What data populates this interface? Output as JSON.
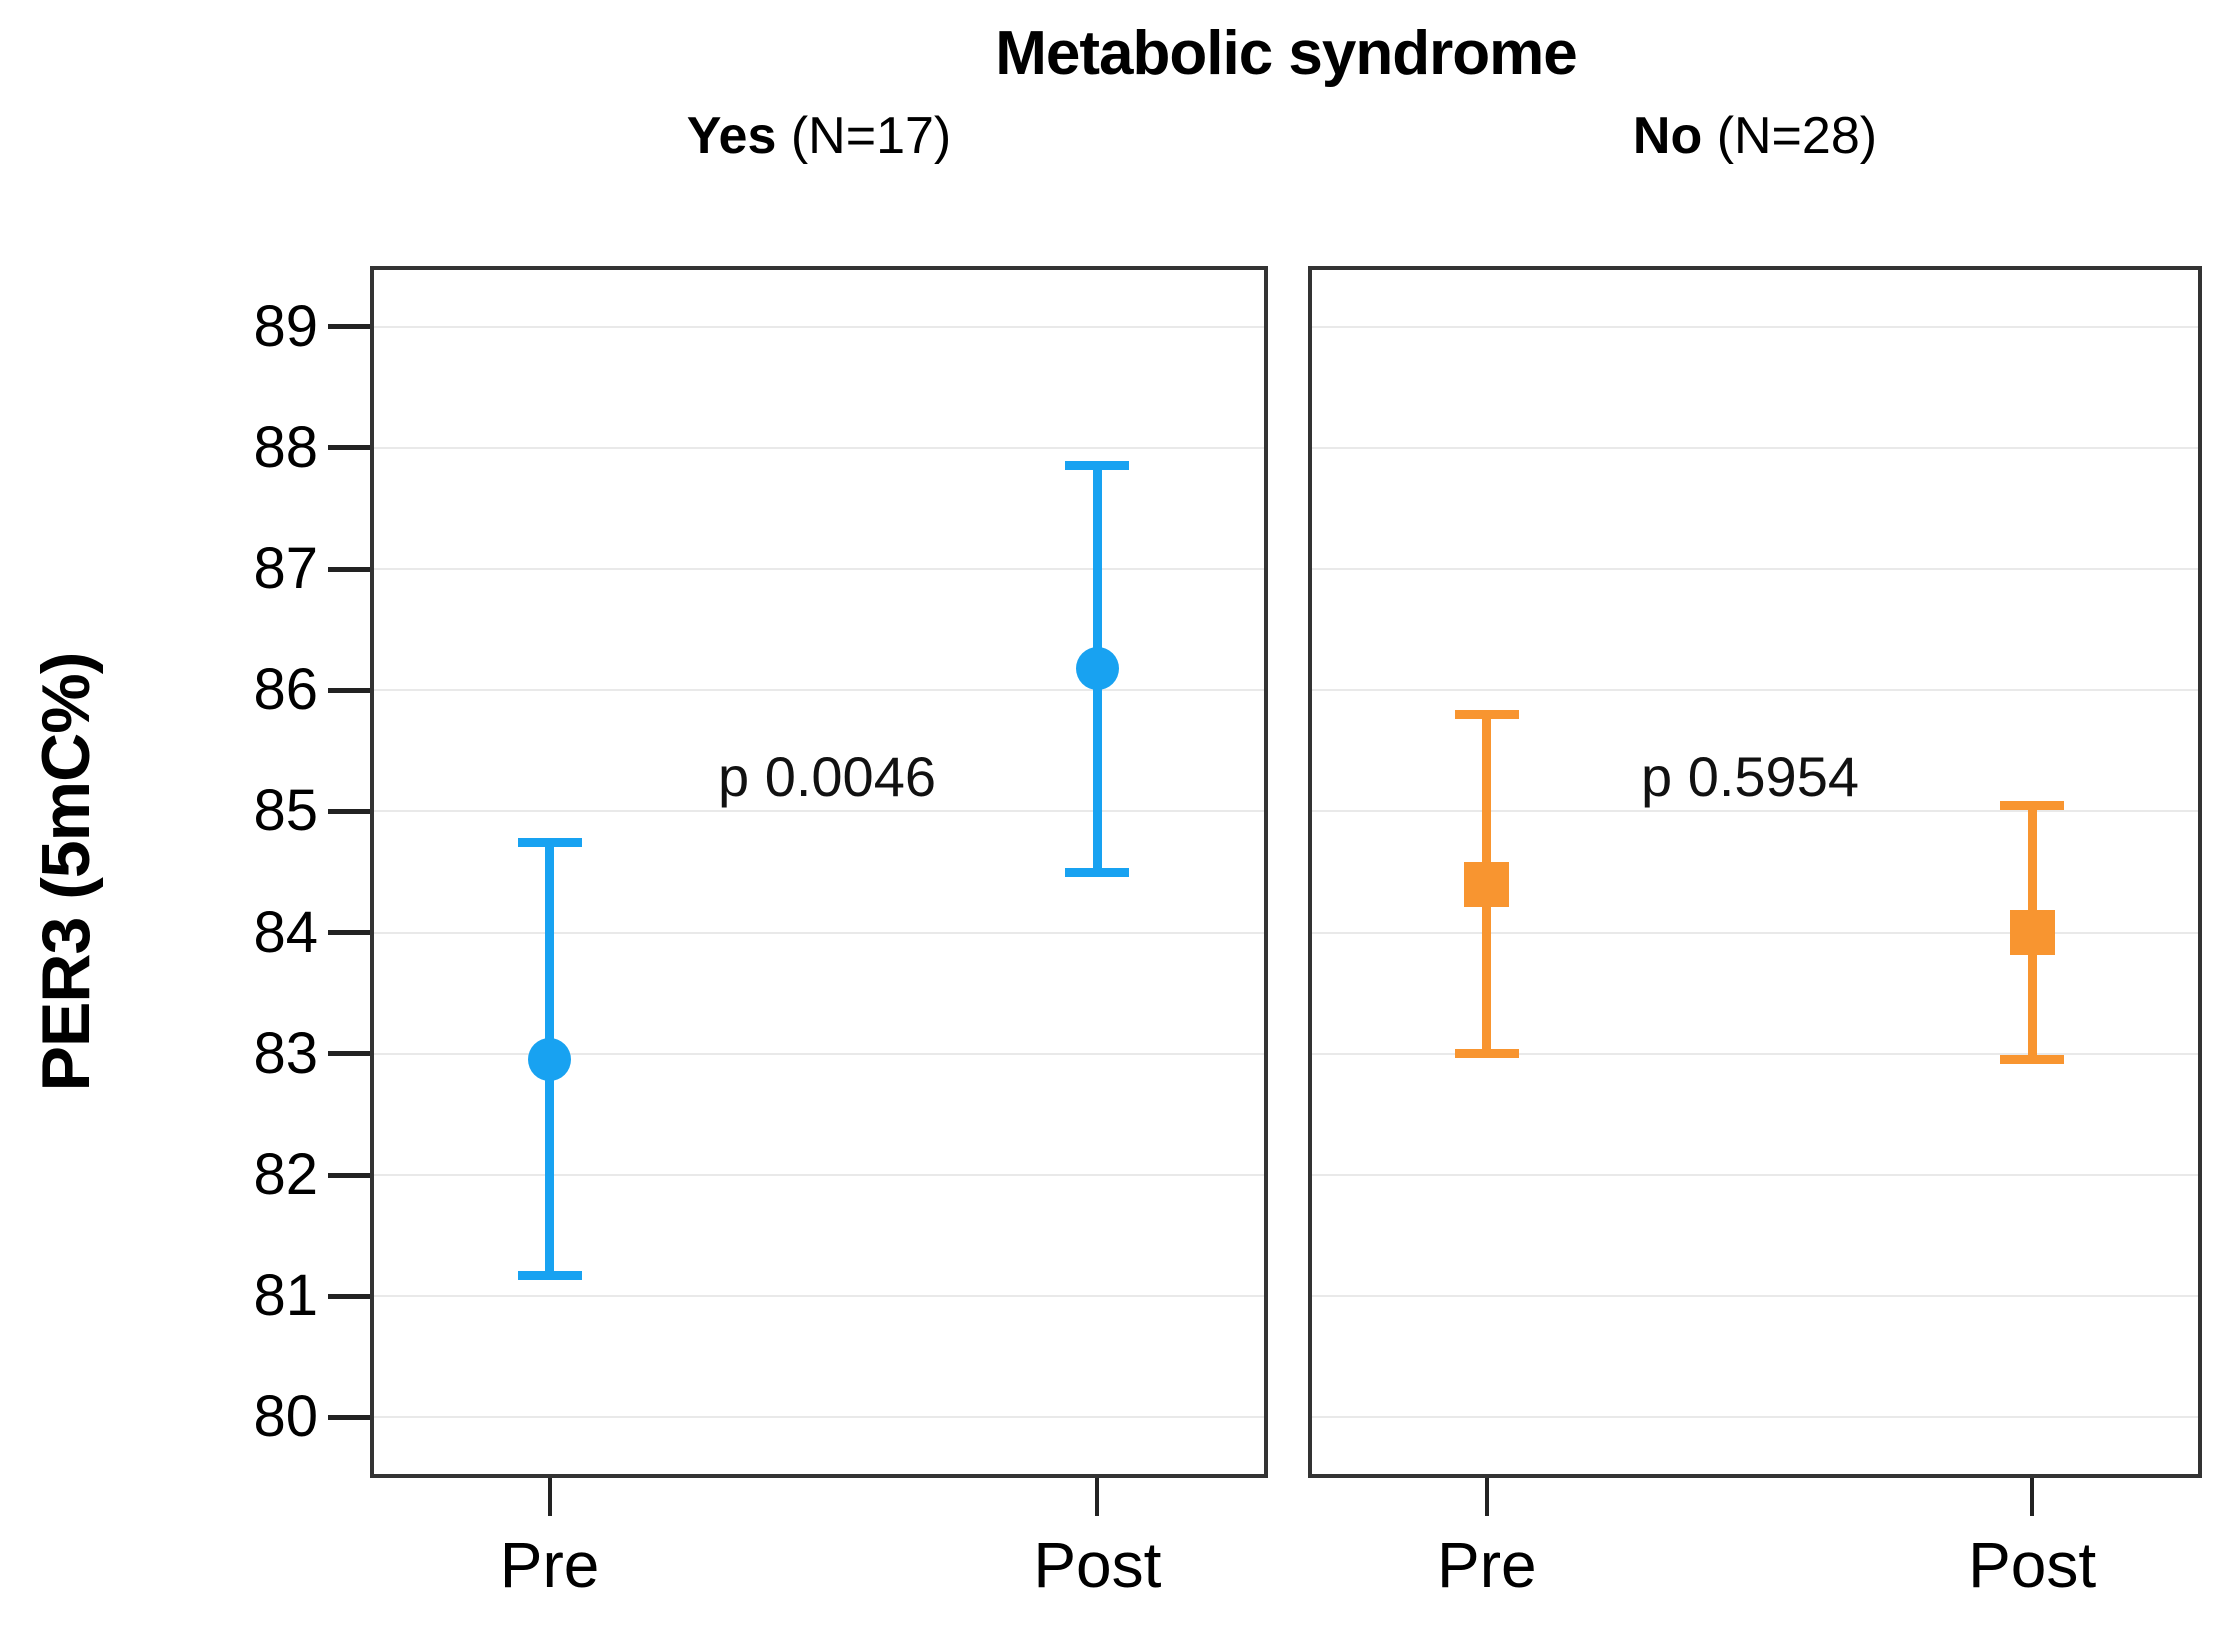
{
  "chart_data": {
    "type": "errorbar",
    "title": "Metabolic syndrome",
    "ylabel": "PER3 (5mC%)",
    "xlabel": "",
    "categories": [
      "Pre",
      "Post"
    ],
    "y_ticks": [
      80,
      81,
      82,
      83,
      84,
      85,
      86,
      87,
      88,
      89
    ],
    "ylim": [
      79.5,
      89.5
    ],
    "grid": "horizontal",
    "legend_position": "none",
    "style": {
      "grid_color": "#e9e9e9",
      "border_color": "#333333",
      "text_color": "#000000",
      "background": "#ffffff"
    },
    "panels": [
      {
        "group_label": "Yes",
        "group_n": "(N=17)",
        "p_label": "p 0.0046",
        "color": "#18a2f1",
        "marker": "circle",
        "points": [
          {
            "category": "Pre",
            "mean": 82.95,
            "lower": 81.17,
            "upper": 84.74
          },
          {
            "category": "Post",
            "mean": 86.18,
            "lower": 84.5,
            "upper": 87.85
          }
        ]
      },
      {
        "group_label": "No",
        "group_n": "(N=28)",
        "p_label": "p 0.5954",
        "color": "#f89530",
        "marker": "square",
        "points": [
          {
            "category": "Pre",
            "mean": 84.4,
            "lower": 83.0,
            "upper": 85.8
          },
          {
            "category": "Post",
            "mean": 84.0,
            "lower": 82.95,
            "upper": 85.05
          }
        ]
      }
    ]
  }
}
